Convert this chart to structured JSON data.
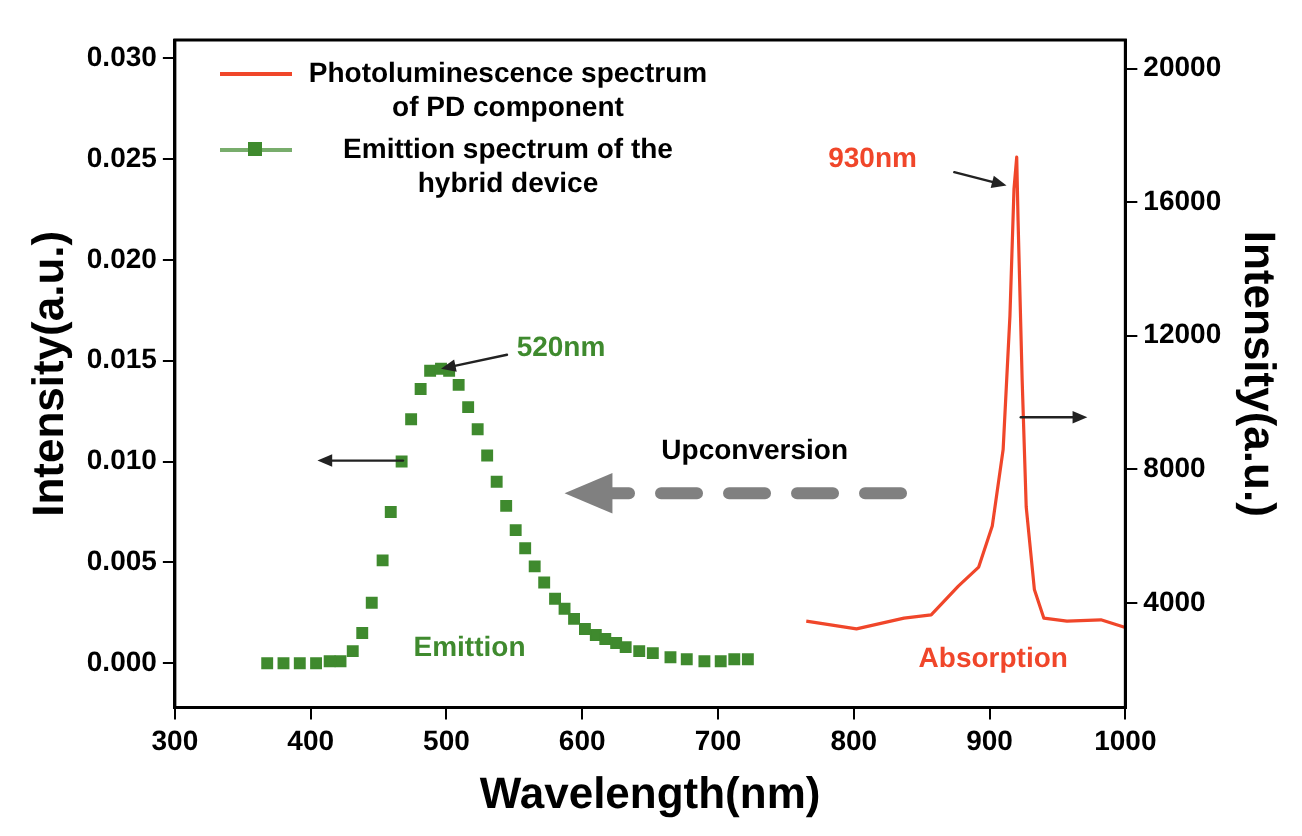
{
  "chart_data": {
    "type": "line",
    "xlabel": "Wavelength(nm)",
    "ylabel": "Intensity(a.u.)",
    "y2label": "Intensity(a.u.)",
    "xlim": [
      300,
      1000
    ],
    "xticks": [
      300,
      400,
      500,
      600,
      700,
      800,
      900,
      1000
    ],
    "ylim": [
      -0.0022,
      0.0309
    ],
    "yticks": [
      {
        "value": 0,
        "label": "0.000"
      },
      {
        "value": 0.005,
        "label": "0.005"
      },
      {
        "value": 0.01,
        "label": "0.010"
      },
      {
        "value": 0.015,
        "label": "0.015"
      },
      {
        "value": 0.02,
        "label": "0.020"
      },
      {
        "value": 0.025,
        "label": "0.025"
      },
      {
        "value": 0.03,
        "label": "0.030"
      }
    ],
    "y2lim": [
      860,
      20860
    ],
    "y2ticks": [
      4000,
      8000,
      12000,
      16000,
      20000
    ],
    "grid": false,
    "legend": "top left",
    "series": [
      {
        "name": "Photoluminescence spectrum of PD component",
        "axis": "y2",
        "color": "#f0462a",
        "line_style": "solid",
        "marker": "none",
        "x": [
          765,
          802,
          837,
          857,
          877,
          892,
          902,
          910,
          915,
          918,
          920,
          921,
          924,
          927,
          933,
          940,
          957,
          982,
          1000
        ],
        "values": [
          3450,
          3220,
          3540,
          3640,
          4500,
          5070,
          6300,
          8590,
          12590,
          16400,
          17350,
          15450,
          10690,
          6870,
          4400,
          3540,
          3450,
          3490,
          3260
        ]
      },
      {
        "name": "Emittion spectrum of the hybrid device",
        "type": "scatter",
        "color": "#3f8a2e",
        "marker": "square",
        "x": [
          368,
          380,
          392,
          404,
          414,
          422,
          431,
          438,
          445,
          453,
          459,
          467,
          474,
          481,
          488,
          496,
          502,
          509,
          516,
          523,
          530,
          537,
          544,
          551,
          558,
          565,
          572,
          580,
          587,
          594,
          602,
          610,
          617,
          625,
          632,
          642,
          652,
          665,
          677,
          690,
          702,
          712,
          722
        ],
        "values": [
          0,
          0,
          0,
          0,
          0.0001,
          0.0001,
          0.0006,
          0.0015,
          0.003,
          0.0051,
          0.0075,
          0.01,
          0.0121,
          0.0136,
          0.0145,
          0.0146,
          0.0145,
          0.0138,
          0.0127,
          0.0116,
          0.0103,
          0.009,
          0.0078,
          0.0066,
          0.0057,
          0.0048,
          0.004,
          0.0032,
          0.0027,
          0.0022,
          0.0017,
          0.0014,
          0.0012,
          0.001,
          0.0008,
          0.0006,
          0.0005,
          0.0003,
          0.0002,
          0.0001,
          0.0001,
          0.0002,
          0.0002
        ]
      }
    ],
    "annotations": [
      "930nm",
      {
        "text": "520nm",
        "x": 496,
        "y": 0.0146
      },
      "Upconversion",
      "Emittion",
      "Absorption"
    ]
  }
}
